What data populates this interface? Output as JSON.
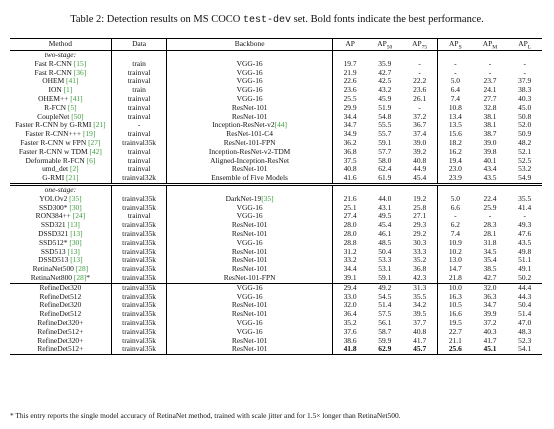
{
  "caption": {
    "prefix": "Table 2: Detection results on MS COCO ",
    "mono": "test-dev",
    "suffix": " set. Bold fonts indicate the best performance."
  },
  "headers": [
    "Method",
    "Data",
    "Backbone",
    "AP",
    "AP",
    "AP",
    "AP",
    "AP",
    "AP"
  ],
  "header_subs": [
    "",
    "",
    "",
    "",
    "50",
    "75",
    "S",
    "M",
    "L"
  ],
  "groups": {
    "two_stage": "two-stage:",
    "one_stage": "one-stage:"
  },
  "two_stage_rows": [
    {
      "m": "Fast R-CNN ",
      "r": "[15]",
      "d": "train",
      "b": "VGG-16",
      "v": [
        "19.7",
        "35.9",
        "-",
        "-",
        "-",
        "-"
      ],
      "bold": []
    },
    {
      "m": "Fast R-CNN ",
      "r": "[36]",
      "d": "trainval",
      "b": "VGG-16",
      "v": [
        "21.9",
        "42.7",
        "-",
        "-",
        "-",
        "-"
      ],
      "bold": []
    },
    {
      "m": "OHEM ",
      "r": "[41]",
      "d": "trainval",
      "b": "VGG-16",
      "v": [
        "22.6",
        "42.5",
        "22.2",
        "5.0",
        "23.7",
        "37.9"
      ],
      "bold": []
    },
    {
      "m": "ION ",
      "r": "[1]",
      "d": "train",
      "b": "VGG-16",
      "v": [
        "23.6",
        "43.2",
        "23.6",
        "6.4",
        "24.1",
        "38.3"
      ],
      "bold": []
    },
    {
      "m": "OHEM++ ",
      "r": "[41]",
      "d": "trainval",
      "b": "VGG-16",
      "v": [
        "25.5",
        "45.9",
        "26.1",
        "7.4",
        "27.7",
        "40.3"
      ],
      "bold": []
    },
    {
      "m": "R-FCN ",
      "r": "[5]",
      "d": "trainval",
      "b": "ResNet-101",
      "v": [
        "29.9",
        "51.9",
        "-",
        "10.8",
        "32.8",
        "45.0"
      ],
      "bold": []
    },
    {
      "m": "CoupleNet ",
      "r": "[50]",
      "d": "trainval",
      "b": "ResNet-101",
      "v": [
        "34.4",
        "54.8",
        "37.2",
        "13.4",
        "38.1",
        "50.8"
      ],
      "bold": []
    },
    {
      "m": "Faster R-CNN by G-RMI ",
      "r": "[21]",
      "d": "-",
      "b": "Inception-ResNet-v2",
      "br": "[44]",
      "v": [
        "34.7",
        "55.5",
        "36.7",
        "13.5",
        "38.1",
        "52.0"
      ],
      "bold": []
    },
    {
      "m": "Faster R-CNN+++ ",
      "r": "[19]",
      "d": "trainval",
      "b": "ResNet-101-C4",
      "v": [
        "34.9",
        "55.7",
        "37.4",
        "15.6",
        "38.7",
        "50.9"
      ],
      "bold": []
    },
    {
      "m": "Faster R-CNN w FPN ",
      "r": "[27]",
      "d": "trainval35k",
      "b": "ResNet-101-FPN",
      "v": [
        "36.2",
        "59.1",
        "39.0",
        "18.2",
        "39.0",
        "48.2"
      ],
      "bold": []
    },
    {
      "m": "Faster R-CNN w TDM ",
      "r": "[42]",
      "d": "trainval",
      "b": "Inception-ResNet-v2-TDM",
      "v": [
        "36.8",
        "57.7",
        "39.2",
        "16.2",
        "39.8",
        "52.1"
      ],
      "bold": []
    },
    {
      "m": "Deformable R-FCN ",
      "r": "[6]",
      "d": "trainval",
      "b": "Aligned-Inception-ResNet",
      "v": [
        "37.5",
        "58.0",
        "40.8",
        "19.4",
        "40.1",
        "52.5"
      ],
      "bold": []
    },
    {
      "m": "umd_det ",
      "r": "[2]",
      "d": "trainval",
      "b": "ResNet-101",
      "v": [
        "40.8",
        "62.4",
        "44.9",
        "23.0",
        "43.4",
        "53.2"
      ],
      "bold": []
    },
    {
      "m": "G-RMI ",
      "r": "[21]",
      "d": "trainval32k",
      "b": "Ensemble of Five Models",
      "v": [
        "41.6",
        "61.9",
        "45.4",
        "23.9",
        "43.5",
        "54.9"
      ],
      "bold": []
    }
  ],
  "one_stage_rows": [
    {
      "m": "YOLOv2 ",
      "r": "[35]",
      "d": "trainval35k",
      "b": "DarkNet-19",
      "br": "[35]",
      "v": [
        "21.6",
        "44.0",
        "19.2",
        "5.0",
        "22.4",
        "35.5"
      ],
      "bold": []
    },
    {
      "m": "SSD300* ",
      "r": "[30]",
      "d": "trainval35k",
      "b": "VGG-16",
      "v": [
        "25.1",
        "43.1",
        "25.8",
        "6.6",
        "25.9",
        "41.4"
      ],
      "bold": []
    },
    {
      "m": "RON384++ ",
      "r": "[24]",
      "d": "trainval",
      "b": "VGG-16",
      "v": [
        "27.4",
        "49.5",
        "27.1",
        "-",
        "-",
        "-"
      ],
      "bold": []
    },
    {
      "m": "SSD321 ",
      "r": "[13]",
      "d": "trainval35k",
      "b": "ResNet-101",
      "v": [
        "28.0",
        "45.4",
        "29.3",
        "6.2",
        "28.3",
        "49.3"
      ],
      "bold": []
    },
    {
      "m": "DSSD321 ",
      "r": "[13]",
      "d": "trainval35k",
      "b": "ResNet-101",
      "v": [
        "28.0",
        "46.1",
        "29.2",
        "7.4",
        "28.1",
        "47.6"
      ],
      "bold": []
    },
    {
      "m": "SSD512* ",
      "r": "[30]",
      "d": "trainval35k",
      "b": "VGG-16",
      "v": [
        "28.8",
        "48.5",
        "30.3",
        "10.9",
        "31.8",
        "43.5"
      ],
      "bold": []
    },
    {
      "m": "SSD513 ",
      "r": "[13]",
      "d": "trainval35k",
      "b": "ResNet-101",
      "v": [
        "31.2",
        "50.4",
        "33.3",
        "10.2",
        "34.5",
        "49.8"
      ],
      "bold": []
    },
    {
      "m": "DSSD513 ",
      "r": "[13]",
      "d": "trainval35k",
      "b": "ResNet-101",
      "v": [
        "33.2",
        "53.3",
        "35.2",
        "13.0",
        "35.4",
        "51.1"
      ],
      "bold": []
    },
    {
      "m": "RetinaNet500 ",
      "r": "[28]",
      "d": "trainval35k",
      "b": "ResNet-101",
      "v": [
        "34.4",
        "53.1",
        "36.8",
        "14.7",
        "38.5",
        "49.1"
      ],
      "bold": []
    },
    {
      "m": "RetinaNet800 ",
      "r": "[28]",
      "suffix": "*",
      "d": "trainval35k",
      "b": "ResNet-101-FPN",
      "v": [
        "39.1",
        "59.1",
        "42.3",
        "21.8",
        "42.7",
        "50.2"
      ],
      "bold": []
    }
  ],
  "refine_rows": [
    {
      "m": "RefineDet320",
      "d": "trainval35k",
      "b": "VGG-16",
      "v": [
        "29.4",
        "49.2",
        "31.3",
        "10.0",
        "32.0",
        "44.4"
      ],
      "bold": []
    },
    {
      "m": "RefineDet512",
      "d": "trainval35k",
      "b": "VGG-16",
      "v": [
        "33.0",
        "54.5",
        "35.5",
        "16.3",
        "36.3",
        "44.3"
      ],
      "bold": []
    },
    {
      "m": "RefineDet320",
      "d": "trainval35k",
      "b": "ResNet-101",
      "v": [
        "32.0",
        "51.4",
        "34.2",
        "10.5",
        "34.7",
        "50.4"
      ],
      "bold": []
    },
    {
      "m": "RefineDet512",
      "d": "trainval35k",
      "b": "ResNet-101",
      "v": [
        "36.4",
        "57.5",
        "39.5",
        "16.6",
        "39.9",
        "51.4"
      ],
      "bold": []
    },
    {
      "m": "RefineDet320+",
      "d": "trainval35k",
      "b": "VGG-16",
      "v": [
        "35.2",
        "56.1",
        "37.7",
        "19.5",
        "37.2",
        "47.0"
      ],
      "bold": []
    },
    {
      "m": "RefineDet512+",
      "d": "trainval35k",
      "b": "VGG-16",
      "v": [
        "37.6",
        "58.7",
        "40.8",
        "22.7",
        "40.3",
        "48.3"
      ],
      "bold": []
    },
    {
      "m": "RefineDet320+",
      "d": "trainval35k",
      "b": "ResNet-101",
      "v": [
        "38.6",
        "59.9",
        "41.7",
        "21.1",
        "41.7",
        "52.3"
      ],
      "bold": []
    },
    {
      "m": "RefineDet512+",
      "d": "trainval35k",
      "b": "ResNet-101",
      "v": [
        "41.8",
        "62.9",
        "45.7",
        "25.6",
        "45.1",
        "54.1"
      ],
      "bold": [
        0,
        1,
        2,
        3,
        4
      ]
    }
  ],
  "footnote": "* This entry reports the single model accuracy of RetinaNet method, trained with scale jitter and for 1.5× longer than RetinaNet500.",
  "colors": {
    "ref": "#3a9a3a"
  }
}
